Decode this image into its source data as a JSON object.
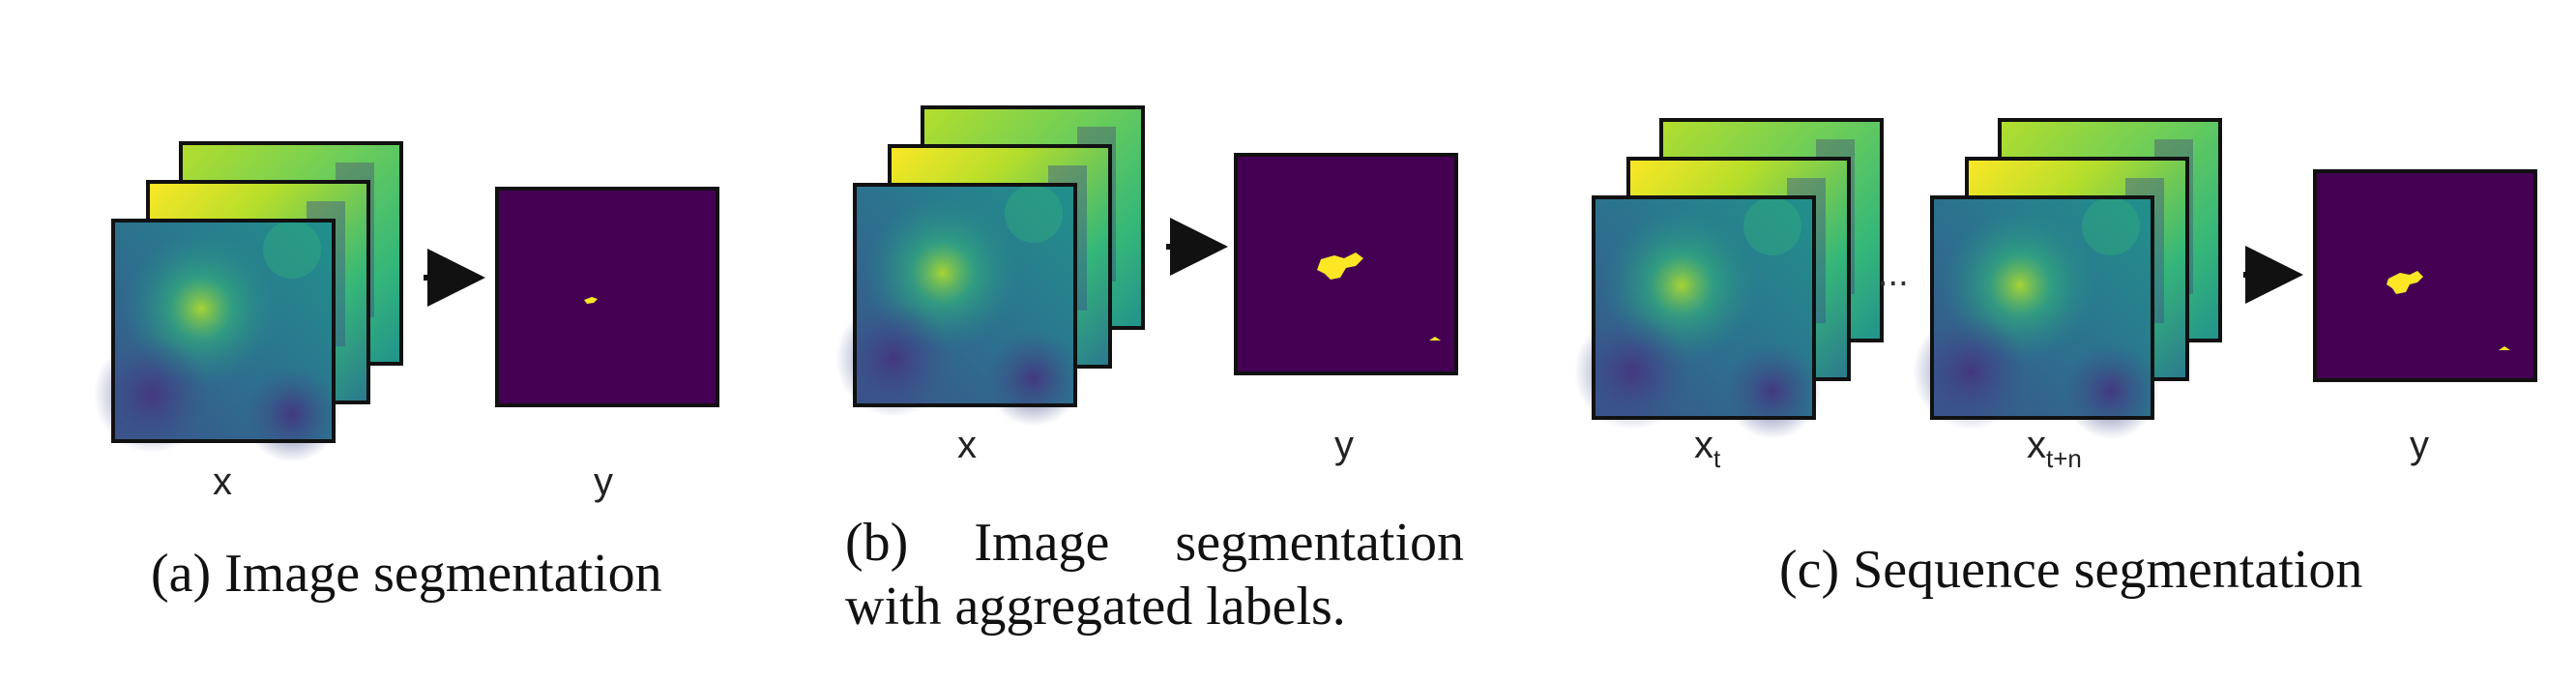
{
  "panels": [
    {
      "id": "a",
      "input_label": "x",
      "output_label": "y",
      "caption": "(a) Image segmentation"
    },
    {
      "id": "b",
      "input_label": "x",
      "output_label": "y",
      "caption": "(b) Image segmentation with aggregated labels."
    },
    {
      "id": "c",
      "input_label_first": "x",
      "input_label_first_sub": "t",
      "input_label_last": "x",
      "input_label_last_sub": "t+n",
      "ellipsis": "...",
      "output_label": "y",
      "caption": "(c) Sequence segmentation"
    }
  ],
  "colors": {
    "viridis_dark": "#440154",
    "viridis_blue": "#31688e",
    "viridis_teal": "#21918c",
    "viridis_green": "#5ec962",
    "viridis_yellow": "#fde725",
    "frame": "#111111",
    "arrow": "#111111"
  }
}
